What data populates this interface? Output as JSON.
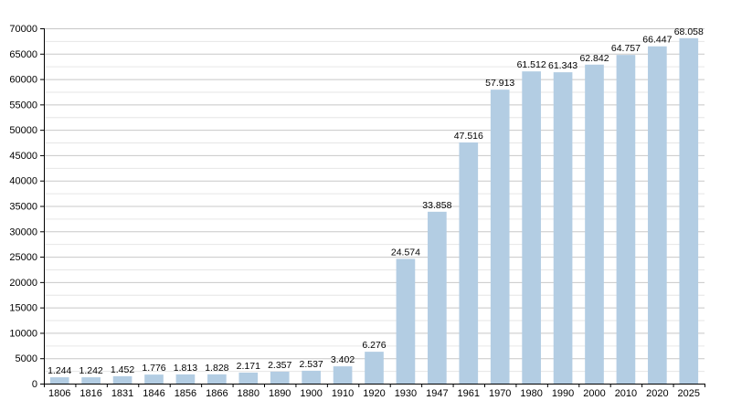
{
  "chart_data": {
    "type": "bar",
    "categories": [
      "1806",
      "1816",
      "1831",
      "1846",
      "1856",
      "1866",
      "1880",
      "1890",
      "1900",
      "1910",
      "1920",
      "1930",
      "1947",
      "1961",
      "1970",
      "1980",
      "1990",
      "2000",
      "2010",
      "2020",
      "2025"
    ],
    "values": [
      1244,
      1242,
      1452,
      1776,
      1813,
      1828,
      2171,
      2357,
      2537,
      3402,
      6276,
      24574,
      33858,
      47516,
      57913,
      61512,
      61343,
      62842,
      64757,
      66447,
      68058
    ],
    "value_labels": [
      "1.244",
      "1.242",
      "1.452",
      "1.776",
      "1.813",
      "1.828",
      "2.171",
      "2.357",
      "2.537",
      "3.402",
      "6.276",
      "24.574",
      "33.858",
      "47.516",
      "57.913",
      "61.512",
      "61.343",
      "62.842",
      "64.757",
      "66.447",
      "68.058"
    ],
    "title": "",
    "xlabel": "",
    "ylabel": "",
    "ylim": [
      0,
      70000
    ],
    "y_ticks": [
      0,
      5000,
      10000,
      15000,
      20000,
      25000,
      30000,
      35000,
      40000,
      45000,
      50000,
      55000,
      60000,
      65000,
      70000
    ],
    "grid": true,
    "legend": "none",
    "bar_color": "#b3cde3",
    "major_grid_color": "#c8c8c8",
    "minor_grid_color": "#e6e6e6"
  }
}
